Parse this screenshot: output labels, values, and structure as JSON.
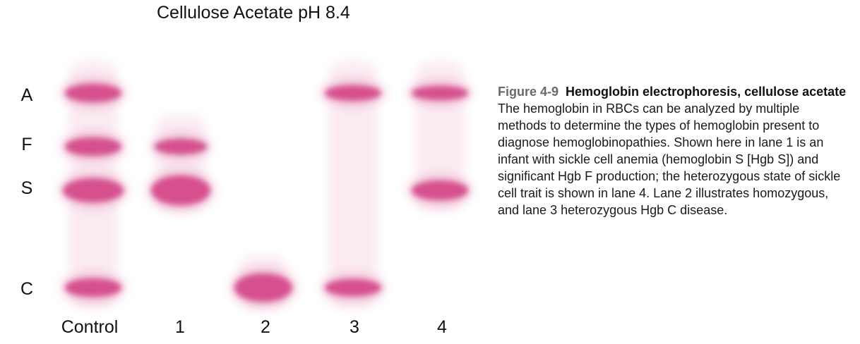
{
  "title": "Cellulose Acetate pH 8.4",
  "band_color": "#d23c82",
  "rows": [
    {
      "id": "A",
      "label": "A"
    },
    {
      "id": "F",
      "label": "F"
    },
    {
      "id": "S",
      "label": "S"
    },
    {
      "id": "C",
      "label": "C"
    }
  ],
  "lanes": [
    {
      "id": "control",
      "label": "Control",
      "bands": [
        "A",
        "F",
        "S",
        "C"
      ]
    },
    {
      "id": "1",
      "label": "1",
      "bands": [
        "F",
        "S"
      ]
    },
    {
      "id": "2",
      "label": "2",
      "bands": [
        "C"
      ]
    },
    {
      "id": "3",
      "label": "3",
      "bands": [
        "A",
        "C"
      ]
    },
    {
      "id": "4",
      "label": "4",
      "bands": [
        "A",
        "S"
      ]
    }
  ],
  "caption": {
    "figure_number": "Figure 4-9",
    "figure_title": "Hemoglobin electrophoresis, cellulose acetate",
    "body": "The hemoglobin in RBCs can be analyzed by multiple methods to determine the types of hemoglobin present to diagnose hemoglobinopathies. Shown here in lane 1 is an infant with sickle cell anemia (hemoglobin S [Hgb S]) and significant Hgb F production; the heterozygous state of sickle cell trait is shown in lane 4. Lane 2 illustrates homozygous, and lane 3 heterozygous Hgb C disease."
  }
}
